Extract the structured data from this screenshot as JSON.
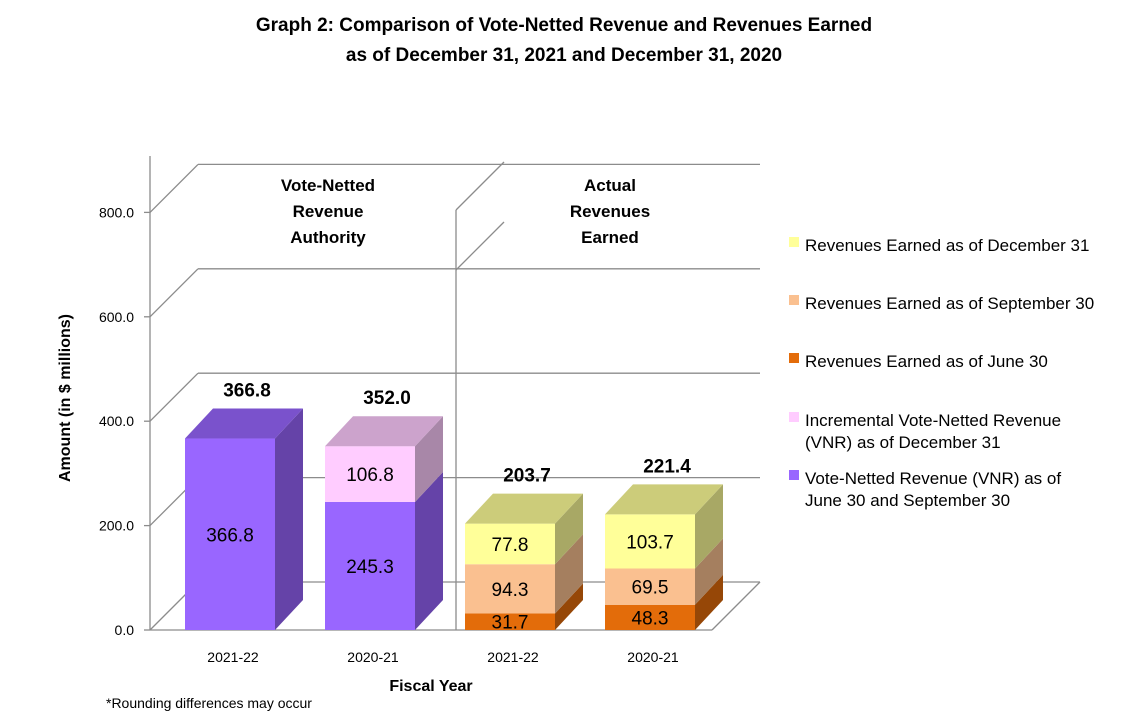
{
  "chart_data": {
    "type": "bar",
    "stacked": true,
    "three_d": true,
    "title_lines": [
      "Graph 2: Comparison of Vote-Netted Revenue and Revenues Earned",
      "as of December 31, 2021 and December 31, 2020"
    ],
    "xlabel": "Fiscal Year",
    "ylabel": "Amount (in $ millions)",
    "ylim": [
      0,
      800
    ],
    "yticks": [
      "0.0",
      "200.0",
      "400.0",
      "600.0",
      "800.0"
    ],
    "grid": true,
    "legend_position": "right",
    "panels": [
      {
        "label_lines": [
          "Vote-Netted",
          "Revenue",
          "Authority"
        ]
      },
      {
        "label_lines": [
          "Actual",
          "Revenues",
          "Earned"
        ]
      }
    ],
    "categories": [
      "2021-22",
      "2020-21",
      "2021-22",
      "2020-21"
    ],
    "category_panel": [
      0,
      0,
      1,
      1
    ],
    "totals": [
      "366.8",
      "352.0",
      "203.7",
      "221.4"
    ],
    "series": [
      {
        "name": "Vote-Netted Revenue (VNR) as of June 30 and September 30",
        "legend_lines": [
          "Vote-Netted Revenue (VNR) as of",
          "June 30 and September 30"
        ],
        "color": "#9966ff",
        "values": [
          366.8,
          245.3,
          null,
          null
        ],
        "labels": [
          "366.8",
          "245.3",
          "",
          ""
        ]
      },
      {
        "name": "Incremental Vote-Netted Revenue (VNR) as of December 31",
        "legend_lines": [
          "Incremental Vote-Netted Revenue",
          "(VNR) as of December 31"
        ],
        "color": "#ffccff",
        "values": [
          null,
          106.8,
          null,
          null
        ],
        "labels": [
          "",
          "106.8",
          "",
          ""
        ]
      },
      {
        "name": "Revenues Earned as of June 30",
        "legend_lines": [
          "Revenues Earned as of June 30"
        ],
        "color": "#e36c0a",
        "values": [
          null,
          null,
          31.7,
          48.3
        ],
        "labels": [
          "",
          "",
          "31.7",
          "48.3"
        ]
      },
      {
        "name": "Revenues Earned as of September 30",
        "legend_lines": [
          "Revenues Earned as of September 30"
        ],
        "color": "#fac090",
        "values": [
          null,
          null,
          94.3,
          69.5
        ],
        "labels": [
          "",
          "",
          "94.3",
          "69.5"
        ]
      },
      {
        "name": "Revenues Earned as of December 31",
        "legend_lines": [
          "Revenues Earned as of December 31"
        ],
        "color": "#ffff99",
        "values": [
          null,
          null,
          77.8,
          103.7
        ],
        "labels": [
          "",
          "",
          "77.8",
          "103.7"
        ]
      }
    ],
    "legend_order": [
      4,
      3,
      2,
      1,
      0
    ],
    "footnote": "*Rounding differences may occur"
  }
}
